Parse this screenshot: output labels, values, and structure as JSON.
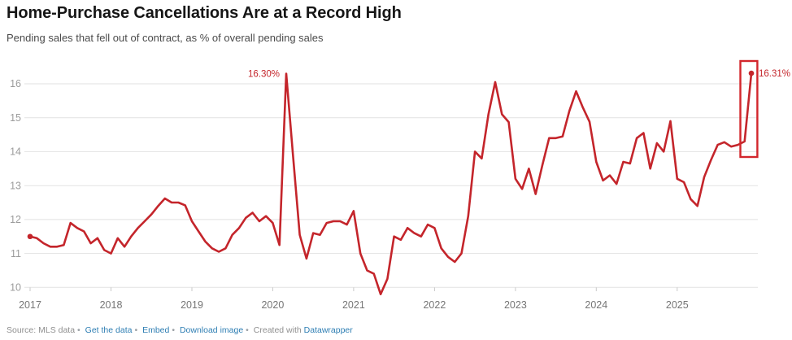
{
  "title": "Home-Purchase Cancellations Are at a Record High",
  "subtitle": "Pending sales that fell out of contract, as % of overall pending sales",
  "annotations": {
    "peak_2020": "16.30%",
    "latest": "16.31%"
  },
  "colors": {
    "line": "#c4252b",
    "annotation": "#c4252b",
    "highlight_box": "#d3262c",
    "grid": "#e2e2e2",
    "axis_label": "#9c9c9c",
    "x_label": "#767676",
    "title": "#161616",
    "subtitle": "#4b4b4b",
    "link": "#2e7eb3",
    "footer_text": "#8f8f8f"
  },
  "footer": {
    "source": "Source: MLS data",
    "separator": "•",
    "links": [
      {
        "label": "Get the data"
      },
      {
        "label": "Embed"
      },
      {
        "label": "Download image"
      }
    ],
    "created_prefix": "Created with",
    "created_link": "Datawrapper"
  },
  "chart_data": {
    "type": "line",
    "series_name": "Pending sales that fell out of contract, as % of overall pending sales",
    "x_start": "2017-01",
    "x_end": "2025-12",
    "x_tick_labels": [
      "2017",
      "2018",
      "2019",
      "2020",
      "2021",
      "2022",
      "2023",
      "2024",
      "2025"
    ],
    "y_ticks": [
      10,
      11,
      12,
      13,
      14,
      15,
      16
    ],
    "ylim": [
      9.7,
      16.55
    ],
    "grid": true,
    "values": [
      11.5,
      11.45,
      11.3,
      11.2,
      11.2,
      11.25,
      11.9,
      11.75,
      11.65,
      11.3,
      11.45,
      11.1,
      11.0,
      11.45,
      11.2,
      11.5,
      11.75,
      11.95,
      12.15,
      12.4,
      12.62,
      12.5,
      12.5,
      12.42,
      11.95,
      11.65,
      11.35,
      11.15,
      11.05,
      11.15,
      11.55,
      11.75,
      12.05,
      12.2,
      11.95,
      12.1,
      11.9,
      11.25,
      16.3,
      13.9,
      11.55,
      10.85,
      11.6,
      11.55,
      11.9,
      11.95,
      11.95,
      11.85,
      12.25,
      11.0,
      10.5,
      10.4,
      9.8,
      10.25,
      11.5,
      11.4,
      11.75,
      11.6,
      11.5,
      11.85,
      11.75,
      11.15,
      10.9,
      10.75,
      11.0,
      12.1,
      14.0,
      13.8,
      15.1,
      16.05,
      15.1,
      14.87,
      13.2,
      12.9,
      13.5,
      12.75,
      13.6,
      14.4,
      14.4,
      14.45,
      15.2,
      15.78,
      15.3,
      14.88,
      13.7,
      13.15,
      13.3,
      13.05,
      13.7,
      13.65,
      14.4,
      14.55,
      13.5,
      14.25,
      14.0,
      14.9,
      13.2,
      13.1,
      12.6,
      12.4,
      13.25,
      13.75,
      14.2,
      14.28,
      14.15,
      14.2,
      14.3,
      16.31
    ],
    "annotated_points": [
      {
        "x": "2020-03",
        "value": 16.3,
        "label": "16.30%"
      },
      {
        "x": "2025-12",
        "value": 16.31,
        "label": "16.31%"
      }
    ],
    "highlight_last_n_points": 2
  }
}
